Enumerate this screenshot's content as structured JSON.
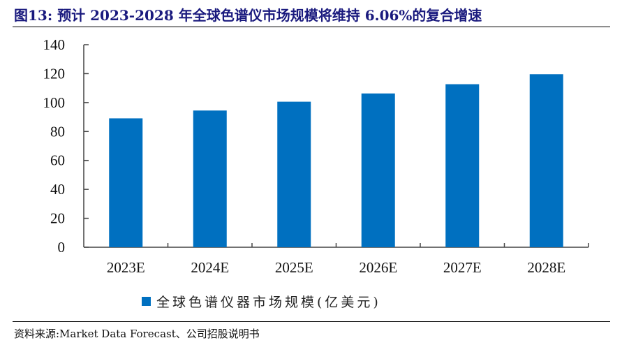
{
  "title": "图13:  预计  2023-2028 年全球色谱仪市场规模将维持  6.06%的复合增速",
  "source": "资料来源:Market Data Forecast、公司招股说明书",
  "colors": {
    "bar": "#0070C0",
    "title": "#1a1a7e",
    "axis": "#444444"
  },
  "chart_data": {
    "type": "bar",
    "title": "预计 2023-2028 年全球色谱仪市场规模将维持 6.06%的复合增速",
    "categories": [
      "2023E",
      "2024E",
      "2025E",
      "2026E",
      "2027E",
      "2028E"
    ],
    "series": [
      {
        "name": "全球色谱仪器市场规模(亿美元)",
        "values": [
          89.1,
          94.5,
          100.6,
          106.3,
          112.7,
          119.6
        ]
      }
    ],
    "xlabel": "",
    "ylabel": "",
    "ylim": [
      0,
      140
    ],
    "yticks": [
      0,
      20,
      40,
      60,
      80,
      100,
      120,
      140
    ],
    "grid": false,
    "legend": "bottom-center",
    "cagr": "6.06%"
  },
  "legend": {
    "label": "全球色谱仪器市场规模(亿美元)"
  }
}
